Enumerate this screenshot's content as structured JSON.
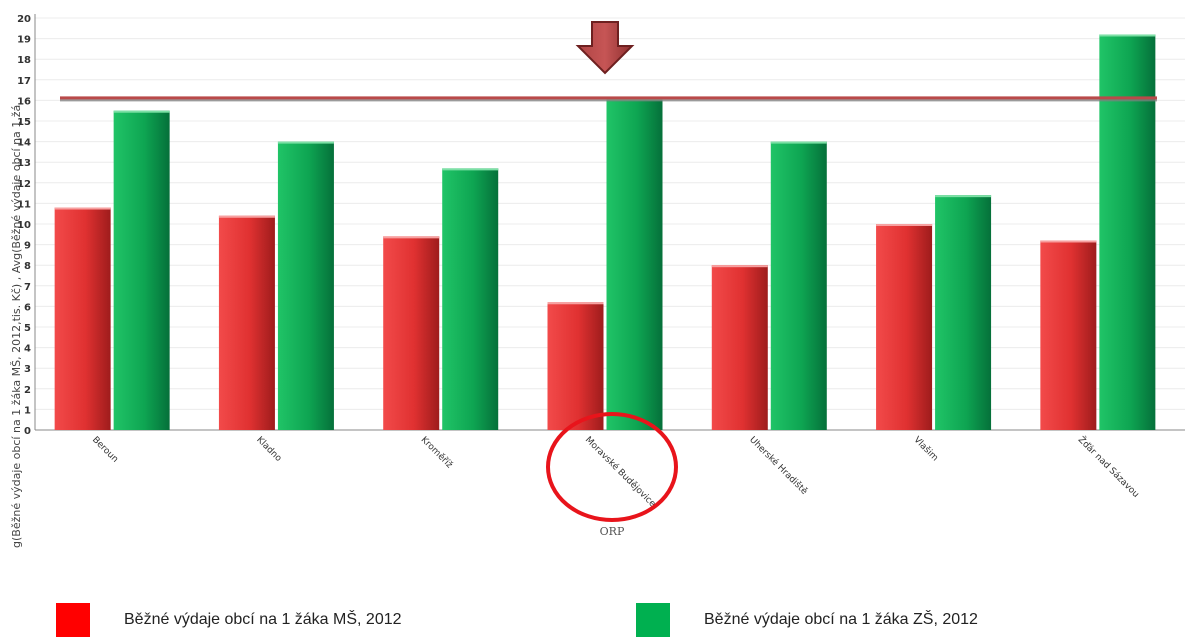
{
  "chart_data": {
    "type": "bar",
    "xlabel": "ORP",
    "ylabel": "g(Běžné výdaje obcí na 1 žáka MŠ, 2012,tis. Kč) , Avg(Běžné výdaje obcí na 1 žá",
    "categories": [
      "Beroun",
      "Kladno",
      "Kroměříž",
      "Moravské Budějovice",
      "Uherské Hradiště",
      "Vlašim",
      "Žďár nad Sázavou"
    ],
    "series": [
      {
        "name": "Běžné výdaje obcí na 1 žáka MŠ, 2012",
        "color": "#e53535",
        "values": [
          10.8,
          10.4,
          9.4,
          6.2,
          8.0,
          10.0,
          9.2
        ]
      },
      {
        "name": "Běžné výdaje obcí na 1 žáka ZŠ, 2012",
        "color": "#0fa854",
        "values": [
          15.5,
          14.0,
          12.7,
          16.1,
          14.0,
          11.4,
          19.2
        ]
      }
    ],
    "yticks": [
      "0",
      "1",
      "2",
      "3",
      "4",
      "5",
      "6",
      "7",
      "8",
      "9",
      "10",
      "11",
      "12",
      "13",
      "14",
      "15",
      "16",
      "17",
      "18",
      "19",
      "20"
    ],
    "ylim": [
      0,
      20
    ],
    "reference_line": {
      "value": 16.0,
      "color": "#b94a4a"
    },
    "annotations": {
      "arrow_points_to": "Moravské Budějovice",
      "circle_around_label": "Moravské Budějovice"
    },
    "grid": true,
    "legend_position": "bottom"
  },
  "legend": {
    "items": [
      {
        "label": "Běžné výdaje obcí na 1 žáka MŠ, 2012",
        "color": "#ff0000"
      },
      {
        "label": "Běžné výdaje obcí na 1 žáka ZŠ, 2012",
        "color": "#00b050"
      }
    ]
  }
}
